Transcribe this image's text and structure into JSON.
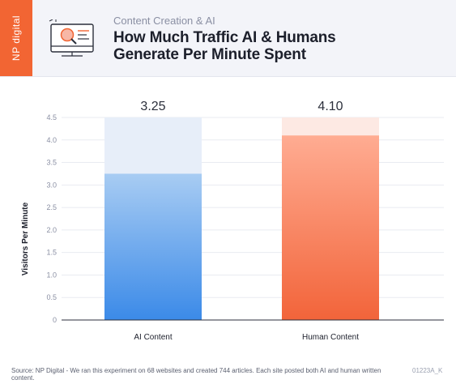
{
  "header": {
    "brand": "NP digital",
    "eyebrow": "Content Creation & AI",
    "title_line1": "How Much Traffic AI & Humans",
    "title_line2": "Generate Per Minute Spent"
  },
  "footer": {
    "source": "Source: NP Digital - We ran this experiment on 68 websites and created 744 articles. Each site posted both AI and human written content.",
    "code": "01223A_K"
  },
  "chart_data": {
    "type": "bar",
    "categories": [
      "AI Content",
      "Human Content"
    ],
    "values": [
      3.25,
      4.1
    ],
    "value_labels": [
      "3.25",
      "4.10"
    ],
    "ylabel": "Visitors Per Minute",
    "ylim": [
      0,
      4.5
    ],
    "yticks": [
      "0",
      "0.5",
      "1.0",
      "1.5",
      "2.0",
      "2.5",
      "3.0",
      "3.5",
      "4.0",
      "4.5"
    ],
    "grid": true,
    "colors": {
      "ai_top": "#a8ccf3",
      "ai_bottom": "#3b8ae8",
      "ai_track": "#e7eef9",
      "human_top": "#ffac92",
      "human_bottom": "#f2643a",
      "human_track": "#fde9e3"
    }
  }
}
